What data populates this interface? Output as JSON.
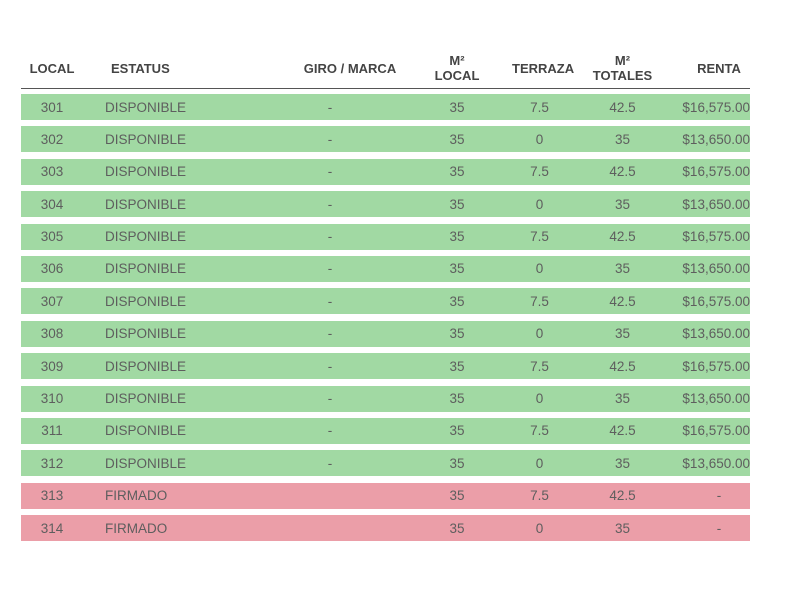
{
  "headers": {
    "local": "LOCAL",
    "status": "ESTATUS",
    "giro": "GIRO / MARCA",
    "m2_local_1": "M²",
    "m2_local_2": "LOCAL",
    "terraza": "TERRAZA",
    "m2_totales_1": "M²",
    "m2_totales_2": "TOTALES",
    "renta": "RENTA"
  },
  "colors": {
    "available": "#a1d9a3",
    "signed": "#eb9ea8"
  },
  "rows": [
    {
      "local": "301",
      "status": "DISPONIBLE",
      "giro": "-",
      "m2_local": "35",
      "terraza": "7.5",
      "m2_totales": "42.5",
      "renta": "$16,575.00",
      "state": "available"
    },
    {
      "local": "302",
      "status": "DISPONIBLE",
      "giro": "-",
      "m2_local": "35",
      "terraza": "0",
      "m2_totales": "35",
      "renta": "$13,650.00",
      "state": "available"
    },
    {
      "local": "303",
      "status": "DISPONIBLE",
      "giro": "-",
      "m2_local": "35",
      "terraza": "7.5",
      "m2_totales": "42.5",
      "renta": "$16,575.00",
      "state": "available"
    },
    {
      "local": "304",
      "status": "DISPONIBLE",
      "giro": "-",
      "m2_local": "35",
      "terraza": "0",
      "m2_totales": "35",
      "renta": "$13,650.00",
      "state": "available"
    },
    {
      "local": "305",
      "status": "DISPONIBLE",
      "giro": "-",
      "m2_local": "35",
      "terraza": "7.5",
      "m2_totales": "42.5",
      "renta": "$16,575.00",
      "state": "available"
    },
    {
      "local": "306",
      "status": "DISPONIBLE",
      "giro": "-",
      "m2_local": "35",
      "terraza": "0",
      "m2_totales": "35",
      "renta": "$13,650.00",
      "state": "available"
    },
    {
      "local": "307",
      "status": "DISPONIBLE",
      "giro": "-",
      "m2_local": "35",
      "terraza": "7.5",
      "m2_totales": "42.5",
      "renta": "$16,575.00",
      "state": "available"
    },
    {
      "local": "308",
      "status": "DISPONIBLE",
      "giro": "-",
      "m2_local": "35",
      "terraza": "0",
      "m2_totales": "35",
      "renta": "$13,650.00",
      "state": "available"
    },
    {
      "local": "309",
      "status": "DISPONIBLE",
      "giro": "-",
      "m2_local": "35",
      "terraza": "7.5",
      "m2_totales": "42.5",
      "renta": "$16,575.00",
      "state": "available"
    },
    {
      "local": "310",
      "status": "DISPONIBLE",
      "giro": "-",
      "m2_local": "35",
      "terraza": "0",
      "m2_totales": "35",
      "renta": "$13,650.00",
      "state": "available"
    },
    {
      "local": "311",
      "status": "DISPONIBLE",
      "giro": "-",
      "m2_local": "35",
      "terraza": "7.5",
      "m2_totales": "42.5",
      "renta": "$16,575.00",
      "state": "available"
    },
    {
      "local": "312",
      "status": "DISPONIBLE",
      "giro": "-",
      "m2_local": "35",
      "terraza": "0",
      "m2_totales": "35",
      "renta": "$13,650.00",
      "state": "available"
    },
    {
      "local": "313",
      "status": "FIRMADO",
      "giro": "",
      "m2_local": "35",
      "terraza": "7.5",
      "m2_totales": "42.5",
      "renta": "-",
      "state": "signed"
    },
    {
      "local": "314",
      "status": "FIRMADO",
      "giro": "",
      "m2_local": "35",
      "terraza": "0",
      "m2_totales": "35",
      "renta": "-",
      "state": "signed"
    }
  ]
}
